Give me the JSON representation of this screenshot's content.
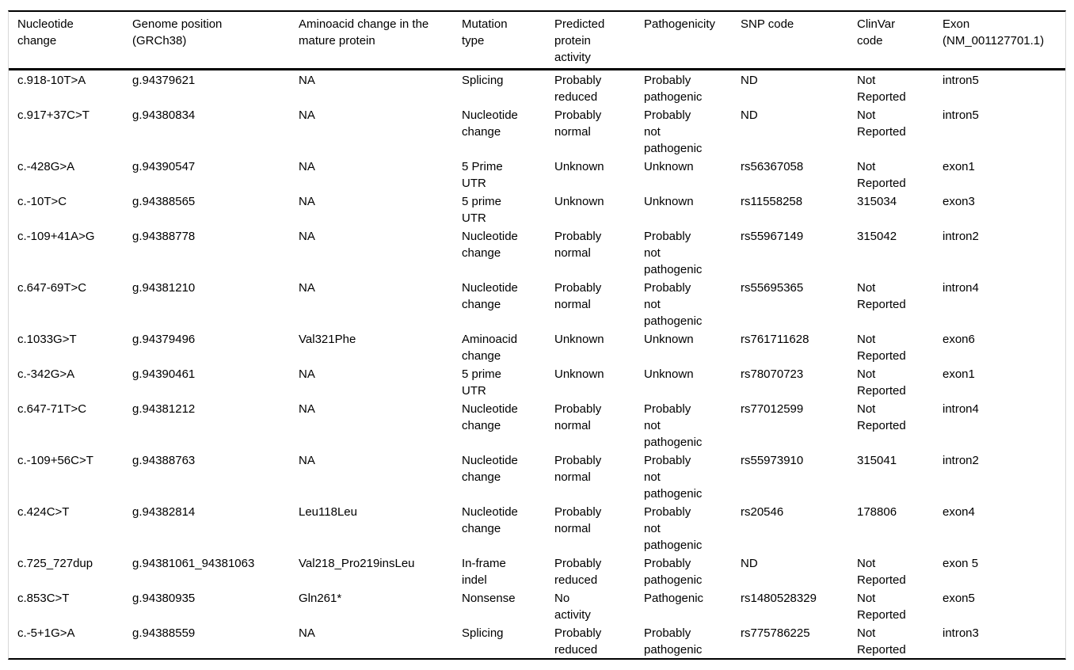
{
  "table": {
    "columns": [
      "Nucleotide\nchange",
      "Genome position\n(GRCh38)",
      "Aminoacid change in the\nmature protein",
      "Mutation\ntype",
      "Predicted\nprotein\nactivity",
      "Pathogenicity",
      "SNP code",
      "ClinVar\ncode",
      "Exon\n(NM_001127701.1)"
    ],
    "rows": [
      [
        "c.918-10T>A",
        "g.94379621",
        "NA",
        "Splicing",
        "Probably\nreduced",
        "Probably\npathogenic",
        "ND",
        "Not\nReported",
        "intron5"
      ],
      [
        "c.917+37C>T",
        "g.94380834",
        "NA",
        "Nucleotide\nchange",
        "Probably\nnormal",
        "Probably\nnot\npathogenic",
        "ND",
        "Not\nReported",
        "intron5"
      ],
      [
        "c.-428G>A",
        "g.94390547",
        "NA",
        "5 Prime\nUTR",
        "Unknown",
        "Unknown",
        "rs56367058",
        "Not\nReported",
        "exon1"
      ],
      [
        "c.-10T>C",
        "g.94388565",
        "NA",
        "5 prime\nUTR",
        "Unknown",
        "Unknown",
        "rs11558258",
        "315034",
        "exon3"
      ],
      [
        "c.-109+41A>G",
        "g.94388778",
        "NA",
        "Nucleotide\nchange",
        "Probably\nnormal",
        "Probably\nnot\npathogenic",
        "rs55967149",
        "315042",
        "intron2"
      ],
      [
        "c.647-69T>C",
        "g.94381210",
        "NA",
        "Nucleotide\nchange",
        "Probably\nnormal",
        "Probably\nnot\npathogenic",
        "rs55695365",
        "Not\nReported",
        "intron4"
      ],
      [
        "c.1033G>T",
        "g.94379496",
        "Val321Phe",
        "Aminoacid\nchange",
        "Unknown",
        "Unknown",
        "rs761711628",
        "Not\nReported",
        "exon6"
      ],
      [
        "c.-342G>A",
        "g.94390461",
        "NA",
        "5 prime\nUTR",
        "Unknown",
        "Unknown",
        "rs78070723",
        "Not\nReported",
        "exon1"
      ],
      [
        "c.647-71T>C",
        "g.94381212",
        "NA",
        "Nucleotide\nchange",
        "Probably\nnormal",
        "Probably\nnot\npathogenic",
        "rs77012599",
        "Not\nReported",
        "intron4"
      ],
      [
        "c.-109+56C>T",
        "g.94388763",
        "NA",
        "Nucleotide\nchange",
        "Probably\nnormal",
        "Probably\nnot\npathogenic",
        "rs55973910",
        "315041",
        "intron2"
      ],
      [
        "c.424C>T",
        "g.94382814",
        "Leu118Leu",
        "Nucleotide\nchange",
        "Probably\nnormal",
        "Probably\nnot\npathogenic",
        "rs20546",
        "178806",
        "exon4"
      ],
      [
        "c.725_727dup",
        "g.94381061_94381063",
        "Val218_Pro219insLeu",
        "In-frame\nindel",
        "Probably\nreduced",
        "Probably\npathogenic",
        "ND",
        "Not\nReported",
        "exon 5"
      ],
      [
        "c.853C>T",
        "g.94380935",
        "Gln261*",
        "Nonsense",
        "No\nactivity",
        "Pathogenic",
        "rs1480528329",
        "Not\nReported",
        "exon5"
      ],
      [
        "c.-5+1G>A",
        "g.94388559",
        "NA",
        "Splicing",
        "Probably\nreduced",
        "Probably\npathogenic",
        "rs775786225",
        "Not\nReported",
        "intron3"
      ]
    ],
    "colors": {
      "rule": "#000000",
      "frame_side": "#d8d8d8",
      "text": "#000000",
      "background": "#ffffff"
    }
  }
}
